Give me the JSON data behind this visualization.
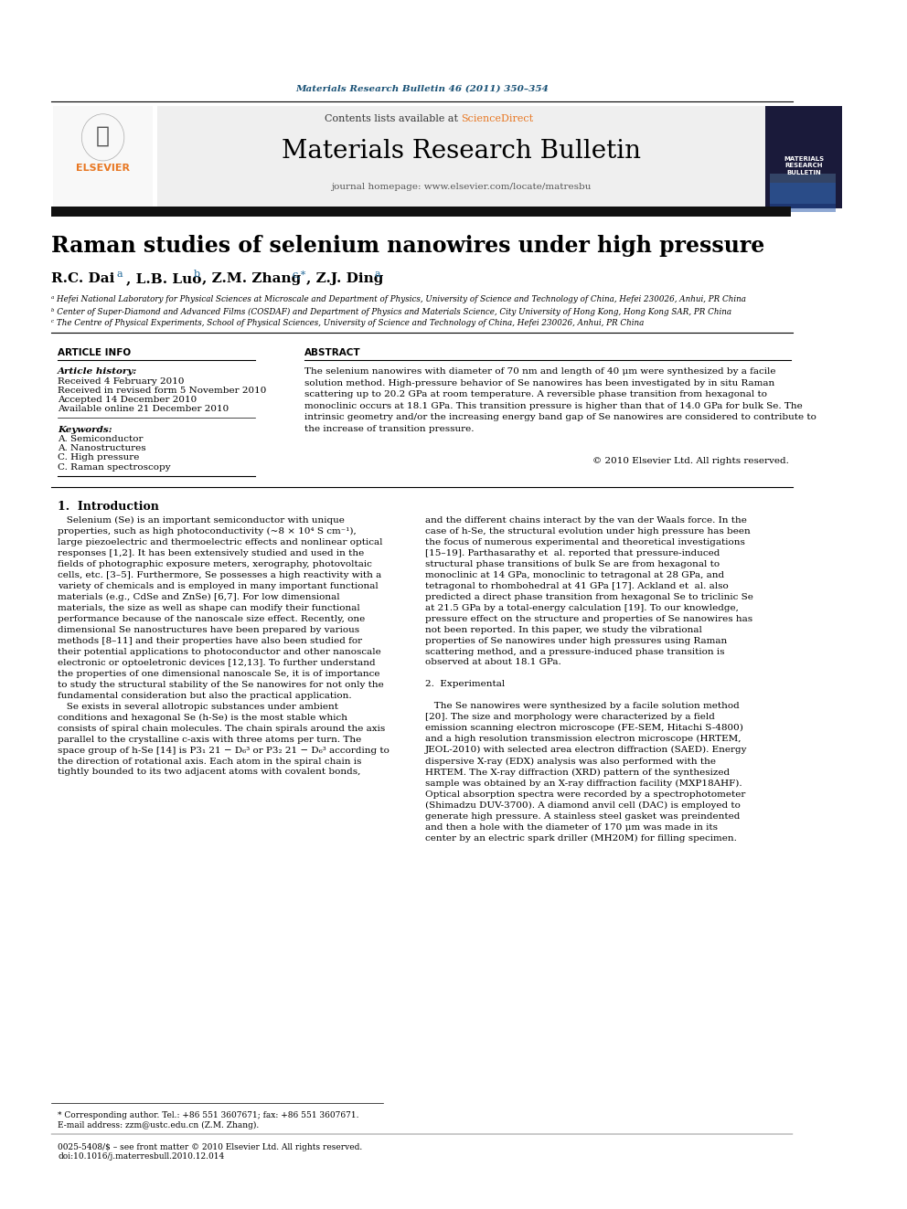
{
  "page_title": "Materials Research Bulletin 46 (2011) 350–354",
  "journal_name": "Materials Research Bulletin",
  "journal_url": "journal homepage: www.elsevier.com/locate/matresbu",
  "contents_line": "Contents lists available at ScienceDirect",
  "paper_title": "Raman studies of selenium nanowires under high pressure",
  "authors": "R.C. Dai ᵃ, L.B. Luo ᵇ, Z.M. Zhang ᶜ,*, Z.J. Ding ᵃ",
  "affil_a": "ᵃ Hefei National Laboratory for Physical Sciences at Microscale and Department of Physics, University of Science and Technology of China, Hefei 230026, Anhui, PR China",
  "affil_b": "ᵇ Center of Super-Diamond and Advanced Films (COSDAF) and Department of Physics and Materials Science, City University of Hong Kong, Hong Kong SAR, PR China",
  "affil_c": "ᶜ The Centre of Physical Experiments, School of Physical Sciences, University of Science and Technology of China, Hefei 230026, Anhui, PR China",
  "article_info_title": "ARTICLE INFO",
  "abstract_title": "ABSTRACT",
  "article_history_label": "Article history:",
  "received": "Received 4 February 2010",
  "revised": "Received in revised form 5 November 2010",
  "accepted": "Accepted 14 December 2010",
  "online": "Available online 21 December 2010",
  "keywords_label": "Keywords:",
  "keywords": [
    "A. Semiconductor",
    "A. Nanostructures",
    "C. High pressure",
    "C. Raman spectroscopy"
  ],
  "abstract_text": "The selenium nanowires with diameter of 70 nm and length of 40 μm were synthesized by a facile solution method. High-pressure behavior of Se nanowires has been investigated by in situ Raman scattering up to 20.2 GPa at room temperature. A reversible phase transition from hexagonal to monoclinic occurs at 18.1 GPa. This transition pressure is higher than that of 14.0 GPa for bulk Se. The intrinsic geometry and/or the increasing energy band gap of Se nanowires are considered to contribute to the increase of transition pressure.",
  "copyright": "© 2010 Elsevier Ltd. All rights reserved.",
  "section1_title": "1.  Introduction",
  "intro_left": "   Selenium (Se) is an important semiconductor with unique properties, such as high photoconductivity (~8 × 10⁴ S cm⁻¹), large piezoelectric and thermoelectric effects and nonlinear optical responses [1,2]. It has been extensively studied and used in the fields of photographic exposure meters, xerography, photovoltaic cells, etc. [3–5]. Furthermore, Se possesses a high reactivity with a variety of chemicals and is employed in many important functional materials (e.g., CdSe and ZnSe) [6,7]. For low dimensional materials, the size as well as shape can modify their functional performance because of the nanoscale size effect. Recently, one dimensional Se nanostructures have been prepared by various methods [8–11] and their properties have also been studied for their potential applications to photoconductor and other nanoscale electronic or optoeletronic devices [12,13]. To further understand the properties of one dimensional nanoscale Se, it is of importance to study the structural stability of the Se nanowires for not only the fundamental consideration but also the practical application.\n   Se exists in several allotropic substances under ambient conditions and hexagonal Se (h-Se) is the most stable which consists of spiral chain molecules. The chain spirals around the axis parallel to the crystalline c-axis with three atoms per turn. The space group of h-Se [14] is P3₁ 21 − D₆³ or P3₂ 21 − D₆³ according to the direction of rotational axis. Each atom in the spiral chain is tightly bounded to its two adjacent atoms with covalent bonds,",
  "intro_right": "and the different chains interact by the van der Waals force. In the case of h-Se, the structural evolution under high pressure has been the focus of numerous experimental and theoretical investigations [15–19]. Parthasarathy et al. reported that pressure-induced structural phase transitions of bulk Se are from hexagonal to monoclinic at 14 GPa, monoclinic to tetragonal at 28 GPa, and tetragonal to rhombohedral at 41 GPa [17]. Ackland et al. also predicted a direct phase transition from hexagonal Se to triclinic Se at 21.5 GPa by a total-energy calculation [19]. To our knowledge, pressure effect on the structure and properties of Se nanowires has not been reported. In this paper, we study the vibrational properties of Se nanowires under high pressures using Raman scattering method, and a pressure-induced phase transition is observed at about 18.1 GPa.\n\n2.  Experimental\n\n   The Se nanowires were synthesized by a facile solution method [20]. The size and morphology were characterized by a field emission scanning electron microscope (FE-SEM, Hitachi S-4800) and a high resolution transmission electron microscope (HRTEM, JEOL-2010) with selected area electron diffraction (SAED). Energy dispersive X-ray (EDX) analysis was also performed with the HRTEM. The X-ray diffraction (XRD) pattern of the synthesized sample was obtained by an X-ray diffraction facility (MXP18AHF). Optical absorption spectra were recorded by a spectrophotometer (Shimadzu DUV-3700). A diamond anvil cell (DAC) is employed to generate high pressure. A stainless steel gasket was preindented and then a hole with the diameter of 170 μm was made in its center by an electric spark driller (MH20M) for filling specimen.",
  "footnote_corresponding": "* Corresponding author. Tel.: +86 551 3607671; fax: +86 551 3607671.",
  "footnote_email": "E-mail address: zzm@ustc.edu.cn (Z.M. Zhang).",
  "footnote_issn": "0025-5408/$ – see front matter © 2010 Elsevier Ltd. All rights reserved.",
  "footnote_doi": "doi:10.1016/j.materresbull.2010.12.014",
  "bg_color": "#ffffff",
  "header_bg": "#f0f0f0",
  "dark_bar_color": "#1a1a2e",
  "blue_color": "#1a6496",
  "sd_blue": "#e87722",
  "title_color": "#cc7a00"
}
